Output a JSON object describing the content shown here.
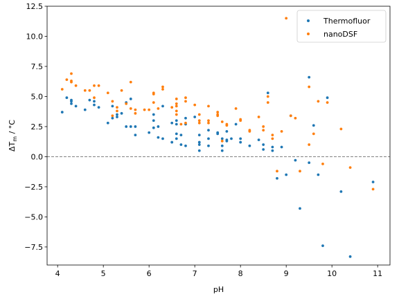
{
  "chart_data": {
    "type": "scatter",
    "xlabel": "pH",
    "ylabel_main": "ΔT",
    "ylabel_sub": "m",
    "ylabel_unit": " / °C",
    "xlim": [
      3.77,
      11.27
    ],
    "ylim": [
      -9.0,
      12.5
    ],
    "x_ticks": [
      4,
      5,
      6,
      7,
      8,
      9,
      10,
      11
    ],
    "x_tick_labels": [
      "4",
      "5",
      "6",
      "7",
      "8",
      "9",
      "10",
      "11"
    ],
    "y_ticks": [
      -7.5,
      -5.0,
      -2.5,
      0.0,
      2.5,
      5.0,
      7.5,
      10.0,
      12.5
    ],
    "y_tick_labels": [
      "−7.5",
      "−5.0",
      "−2.5",
      "0.0",
      "2.5",
      "5.0",
      "7.5",
      "10.0",
      "12.5"
    ],
    "grid": false,
    "reference_line": {
      "y": 0,
      "style": "dashed",
      "color": "#808080"
    },
    "legend_position": "top-right",
    "series": [
      {
        "name": "Thermofluor",
        "color": "#1f77b4",
        "points": [
          [
            4.1,
            3.7
          ],
          [
            4.2,
            4.9
          ],
          [
            4.3,
            4.6
          ],
          [
            4.3,
            4.4
          ],
          [
            4.3,
            4.7
          ],
          [
            4.4,
            4.2
          ],
          [
            4.6,
            3.9
          ],
          [
            4.7,
            4.7
          ],
          [
            4.8,
            4.6
          ],
          [
            4.8,
            4.3
          ],
          [
            4.9,
            4.1
          ],
          [
            5.1,
            2.8
          ],
          [
            5.2,
            4.2
          ],
          [
            5.2,
            3.2
          ],
          [
            5.3,
            3.5
          ],
          [
            5.3,
            3.3
          ],
          [
            5.4,
            3.6
          ],
          [
            5.5,
            2.5
          ],
          [
            5.5,
            4.5
          ],
          [
            5.6,
            2.5
          ],
          [
            5.6,
            4.8
          ],
          [
            5.7,
            2.5
          ],
          [
            5.7,
            1.8
          ],
          [
            6.0,
            2.0
          ],
          [
            6.1,
            2.4
          ],
          [
            6.1,
            3.0
          ],
          [
            6.1,
            3.5
          ],
          [
            6.2,
            1.6
          ],
          [
            6.2,
            2.5
          ],
          [
            6.3,
            4.2
          ],
          [
            6.3,
            1.5
          ],
          [
            6.5,
            2.8
          ],
          [
            6.5,
            1.2
          ],
          [
            6.6,
            3.0
          ],
          [
            6.6,
            2.7
          ],
          [
            6.6,
            1.5
          ],
          [
            6.6,
            1.9
          ],
          [
            6.7,
            1.0
          ],
          [
            6.7,
            1.8
          ],
          [
            6.8,
            2.7
          ],
          [
            6.8,
            3.2
          ],
          [
            6.8,
            0.9
          ],
          [
            7.0,
            3.3
          ],
          [
            7.1,
            1.8
          ],
          [
            7.1,
            1.2
          ],
          [
            7.1,
            1.0
          ],
          [
            7.1,
            0.5
          ],
          [
            7.3,
            2.2
          ],
          [
            7.3,
            1.5
          ],
          [
            7.3,
            0.9
          ],
          [
            7.5,
            2.0
          ],
          [
            7.5,
            1.9
          ],
          [
            7.6,
            1.5
          ],
          [
            7.6,
            0.9
          ],
          [
            7.6,
            0.5
          ],
          [
            7.7,
            1.4
          ],
          [
            7.7,
            2.1
          ],
          [
            7.7,
            1.3
          ],
          [
            7.8,
            1.5
          ],
          [
            7.9,
            2.7
          ],
          [
            8.0,
            1.5
          ],
          [
            8.0,
            1.2
          ],
          [
            8.2,
            0.9
          ],
          [
            8.4,
            1.4
          ],
          [
            8.5,
            1.0
          ],
          [
            8.5,
            0.6
          ],
          [
            8.6,
            5.3
          ],
          [
            8.7,
            0.8
          ],
          [
            8.7,
            0.5
          ],
          [
            8.8,
            -1.8
          ],
          [
            8.9,
            0.8
          ],
          [
            9.0,
            -1.5
          ],
          [
            9.1,
            3.4
          ],
          [
            9.2,
            -0.3
          ],
          [
            9.3,
            -4.3
          ],
          [
            9.5,
            -0.5
          ],
          [
            9.5,
            6.6
          ],
          [
            9.6,
            2.6
          ],
          [
            9.7,
            -1.5
          ],
          [
            9.8,
            -7.4
          ],
          [
            9.9,
            4.9
          ],
          [
            10.2,
            -2.9
          ],
          [
            10.4,
            -8.3
          ],
          [
            10.9,
            -2.1
          ]
        ]
      },
      {
        "name": "nanoDSF",
        "color": "#ff7f0e",
        "points": [
          [
            4.1,
            5.6
          ],
          [
            4.2,
            6.4
          ],
          [
            4.3,
            6.3
          ],
          [
            4.3,
            6.9
          ],
          [
            4.3,
            6.2
          ],
          [
            4.4,
            5.9
          ],
          [
            4.6,
            5.5
          ],
          [
            4.7,
            5.5
          ],
          [
            4.8,
            5.9
          ],
          [
            4.8,
            4.9
          ],
          [
            4.9,
            5.9
          ],
          [
            5.1,
            5.3
          ],
          [
            5.2,
            4.6
          ],
          [
            5.2,
            3.4
          ],
          [
            5.3,
            4.1
          ],
          [
            5.3,
            3.8
          ],
          [
            5.4,
            5.5
          ],
          [
            5.5,
            4.4
          ],
          [
            5.6,
            6.2
          ],
          [
            5.6,
            4.0
          ],
          [
            5.7,
            3.9
          ],
          [
            5.7,
            3.6
          ],
          [
            5.9,
            3.9
          ],
          [
            6.0,
            3.9
          ],
          [
            6.1,
            5.3
          ],
          [
            6.1,
            5.2
          ],
          [
            6.1,
            4.5
          ],
          [
            6.2,
            4.0
          ],
          [
            6.3,
            5.8
          ],
          [
            6.3,
            5.6
          ],
          [
            6.5,
            4.1
          ],
          [
            6.6,
            4.8
          ],
          [
            6.6,
            4.4
          ],
          [
            6.6,
            4.2
          ],
          [
            6.6,
            3.8
          ],
          [
            6.6,
            3.5
          ],
          [
            6.7,
            2.7
          ],
          [
            6.8,
            4.9
          ],
          [
            6.8,
            4.6
          ],
          [
            6.8,
            2.8
          ],
          [
            7.0,
            4.3
          ],
          [
            7.1,
            3.5
          ],
          [
            7.1,
            3.0
          ],
          [
            7.1,
            2.8
          ],
          [
            7.3,
            4.2
          ],
          [
            7.3,
            3.0
          ],
          [
            7.3,
            2.8
          ],
          [
            7.5,
            3.7
          ],
          [
            7.5,
            3.5
          ],
          [
            7.5,
            3.4
          ],
          [
            7.6,
            2.9
          ],
          [
            7.6,
            1.3
          ],
          [
            7.7,
            2.7
          ],
          [
            7.7,
            2.6
          ],
          [
            7.9,
            4.0
          ],
          [
            8.0,
            3.1
          ],
          [
            8.0,
            3.0
          ],
          [
            8.2,
            2.1
          ],
          [
            8.2,
            2.2
          ],
          [
            8.4,
            3.3
          ],
          [
            8.5,
            2.2
          ],
          [
            8.5,
            2.5
          ],
          [
            8.6,
            4.5
          ],
          [
            8.6,
            5.0
          ],
          [
            8.7,
            1.8
          ],
          [
            8.7,
            1.5
          ],
          [
            8.8,
            -1.2
          ],
          [
            8.9,
            2.1
          ],
          [
            9.0,
            11.5
          ],
          [
            9.1,
            3.4
          ],
          [
            9.2,
            3.2
          ],
          [
            9.3,
            -1.2
          ],
          [
            9.5,
            5.8
          ],
          [
            9.5,
            1.0
          ],
          [
            9.6,
            1.9
          ],
          [
            9.7,
            4.6
          ],
          [
            9.8,
            -0.6
          ],
          [
            9.9,
            4.5
          ],
          [
            10.2,
            2.3
          ],
          [
            10.4,
            -0.9
          ],
          [
            10.9,
            -2.7
          ]
        ]
      }
    ]
  }
}
